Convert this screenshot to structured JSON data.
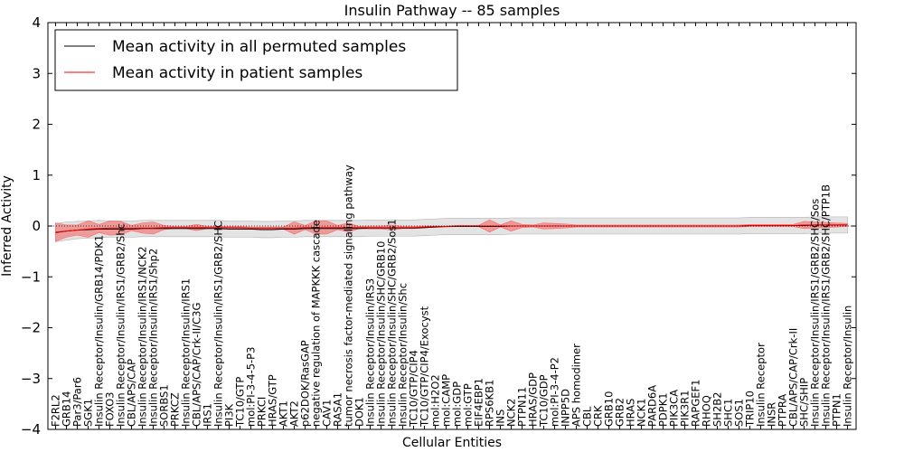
{
  "chart_data": {
    "type": "line",
    "title": "Insulin Pathway -- 85 samples",
    "xlabel": "Cellular Entities",
    "ylabel": "Inferred Activity",
    "ylim": [
      -4,
      4
    ],
    "yticks": [
      "−4",
      "−3",
      "−2",
      "−1",
      "0",
      "1",
      "2",
      "3",
      "4"
    ],
    "legend_position": "top-left",
    "categories": [
      "F2RL2",
      "GRB14",
      "Par3/Par6",
      "SGK1",
      "Insulin Receptor/Insulin/GRB14/PDK1",
      "FOXO3",
      "Insulin Receptor/Insulin/IRS1/GRB2/Shc",
      "CBL/APS/CAP",
      "Insulin Receptor/Insulin/IRS1/NCK2",
      "Insulin Receptor/Insulin/IRS1/Shp2",
      "SORBS1",
      "PRKCZ",
      "Insulin Receptor/Insulin/IRS1",
      "CBL/APS/CAP/Crk-II/C3G",
      "IRS1",
      "Insulin Receptor/Insulin/IRS1/GRB2/SHC",
      "PI3K",
      "TC10/GTP",
      "mol:PI-3-4-5-P3",
      "PRKCI",
      "HRAS/GTP",
      "AKT1",
      "AKT2",
      "p62DOK/RasGAP",
      "negative regulation of MAPKKK cascade",
      "CAV1",
      "RASA1",
      "tumor necrosis factor-mediated signaling pathway",
      "DOK1",
      "Insulin Receptor/Insulin/IRS3",
      "Insulin Receptor/Insulin/SHC/GRB10",
      "Insulin Receptor/Insulin/SHC/GRB2/Sos1",
      "Insulin Receptor/Insulin/Shc",
      "TC10/GTP/CIP4",
      "TC10/GTP/CIP4/Exocyst",
      "mol:H2O2",
      "mol:CAMP",
      "mol:GDP",
      "mol:GTP",
      "EIF4EBP1",
      "RPS6KB1",
      "INS",
      "NCK2",
      "PTPN11",
      "HRAS/GDP",
      "TC10/GDP",
      "mol:PI-3-4-P2",
      "INPP5D",
      "APS homodimer",
      "CBL",
      "CRK",
      "GRB10",
      "GRB2",
      "HRAS",
      "NCK1",
      "PARD6A",
      "PDPK1",
      "PIK3CA",
      "PIK3R1",
      "RAPGEF1",
      "RHOQ",
      "SH2B2",
      "SHC1",
      "SOS1",
      "TRIP10",
      "Insulin Receptor",
      "INSR",
      "PTPRA",
      "CBL/APS/CAP/Crk-II",
      "SHC/SHIP",
      "Insulin Receptor/Insulin/IRS1/GRB2/SHC/Sos",
      "Insulin Receptor/Insulin/IRS1/GRB2/SHC/PTP1B",
      "PTPN1",
      "Insulin Receptor/Insulin"
    ],
    "series": [
      {
        "name": "Mean activity in all permuted samples",
        "color": "#000000",
        "values": [
          -0.13,
          -0.1,
          -0.08,
          -0.07,
          -0.06,
          -0.06,
          -0.06,
          -0.06,
          -0.05,
          -0.05,
          -0.05,
          -0.05,
          -0.05,
          -0.05,
          -0.05,
          -0.05,
          -0.06,
          -0.06,
          -0.06,
          -0.07,
          -0.07,
          -0.06,
          -0.06,
          -0.05,
          -0.05,
          -0.05,
          -0.05,
          -0.05,
          -0.05,
          -0.04,
          -0.04,
          -0.04,
          -0.04,
          -0.04,
          -0.03,
          -0.02,
          -0.01,
          -0.01,
          -0.01,
          -0.01,
          -0.01,
          -0.01,
          0.0,
          0.0,
          0.0,
          0.0,
          0.0,
          0.0,
          0.0,
          0.0,
          0.0,
          0.0,
          0.0,
          0.0,
          0.0,
          0.0,
          0.0,
          0.0,
          0.0,
          0.0,
          0.0,
          0.0,
          0.0,
          0.0,
          0.01,
          0.01,
          0.01,
          0.01,
          0.01,
          0.01,
          0.02,
          0.02,
          0.02,
          0.02
        ],
        "band": [
          0.18,
          0.18,
          0.17,
          0.17,
          0.17,
          0.16,
          0.16,
          0.16,
          0.16,
          0.16,
          0.16,
          0.16,
          0.16,
          0.16,
          0.16,
          0.16,
          0.16,
          0.16,
          0.16,
          0.16,
          0.16,
          0.16,
          0.16,
          0.16,
          0.16,
          0.16,
          0.16,
          0.16,
          0.16,
          0.16,
          0.16,
          0.16,
          0.16,
          0.16,
          0.16,
          0.16,
          0.16,
          0.16,
          0.16,
          0.16,
          0.16,
          0.16,
          0.16,
          0.16,
          0.16,
          0.16,
          0.16,
          0.16,
          0.16,
          0.16,
          0.16,
          0.16,
          0.16,
          0.16,
          0.16,
          0.16,
          0.16,
          0.16,
          0.16,
          0.16,
          0.16,
          0.16,
          0.16,
          0.16,
          0.16,
          0.16,
          0.16,
          0.16,
          0.16,
          0.16,
          0.16,
          0.16,
          0.16,
          0.16
        ]
      },
      {
        "name": "Mean activity in patient samples",
        "color": "#ff0000",
        "values": [
          -0.12,
          -0.1,
          -0.08,
          -0.06,
          -0.05,
          -0.04,
          -0.04,
          -0.04,
          -0.04,
          -0.04,
          -0.03,
          -0.03,
          -0.03,
          -0.03,
          -0.03,
          -0.03,
          -0.03,
          -0.03,
          -0.04,
          -0.04,
          -0.04,
          -0.04,
          -0.04,
          -0.03,
          -0.03,
          -0.03,
          -0.03,
          -0.03,
          -0.03,
          -0.03,
          -0.03,
          -0.03,
          -0.03,
          -0.03,
          -0.02,
          -0.01,
          -0.01,
          0.0,
          0.0,
          0.0,
          0.0,
          0.0,
          0.0,
          0.0,
          0.0,
          0.0,
          0.0,
          0.0,
          0.0,
          0.0,
          0.0,
          0.0,
          0.0,
          0.0,
          0.0,
          0.0,
          0.0,
          0.0,
          0.0,
          0.0,
          0.0,
          0.0,
          0.0,
          0.0,
          0.01,
          0.01,
          0.01,
          0.01,
          0.01,
          0.02,
          0.02,
          0.02,
          0.02,
          0.02
        ],
        "band": [
          0.18,
          0.12,
          0.1,
          0.16,
          0.08,
          0.14,
          0.13,
          0.05,
          0.1,
          0.12,
          0.04,
          0.02,
          0.02,
          0.06,
          0.02,
          0.02,
          0.02,
          0.02,
          0.02,
          0.02,
          0.02,
          0.02,
          0.12,
          0.04,
          0.13,
          0.13,
          0.04,
          0.09,
          0.02,
          0.03,
          0.03,
          0.05,
          0.02,
          0.02,
          0.02,
          0.01,
          0.01,
          0.01,
          0.01,
          0.01,
          0.12,
          0.02,
          0.1,
          0.03,
          0.02,
          0.06,
          0.05,
          0.04,
          0.02,
          0.02,
          0.02,
          0.02,
          0.02,
          0.02,
          0.02,
          0.02,
          0.02,
          0.02,
          0.02,
          0.02,
          0.02,
          0.02,
          0.02,
          0.02,
          0.02,
          0.02,
          0.02,
          0.02,
          0.02,
          0.07,
          0.06,
          0.05,
          0.04,
          0.03
        ]
      }
    ]
  }
}
